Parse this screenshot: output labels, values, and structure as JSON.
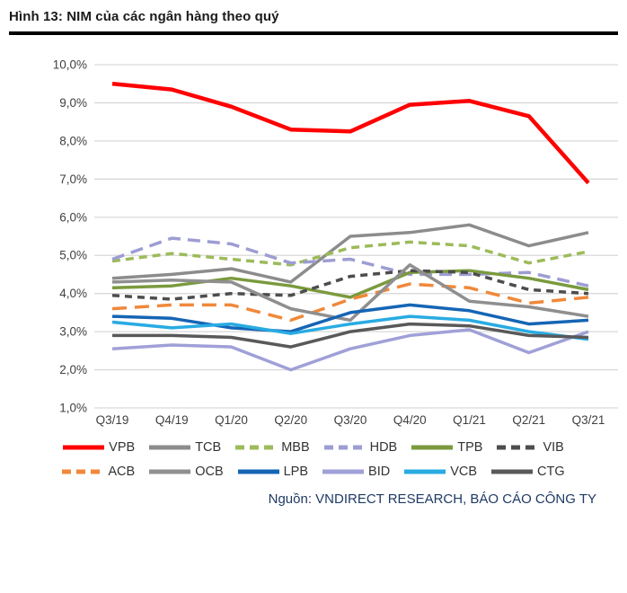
{
  "chart_data": {
    "type": "line",
    "title": "Hình 13: NIM của các ngân hàng theo quý",
    "source": "Nguồn: VNDIRECT RESEARCH, BÁO CÁO CÔNG TY",
    "x_categories": [
      "Q3/19",
      "Q4/19",
      "Q1/20",
      "Q2/20",
      "Q3/20",
      "Q4/20",
      "Q1/21",
      "Q2/21",
      "Q3/21"
    ],
    "y_ticks": [
      "10,0%",
      "9,0%",
      "8,0%",
      "7,0%",
      "6,0%",
      "5,0%",
      "4,0%",
      "3,0%",
      "2,0%",
      "1,0%"
    ],
    "y_min": 1,
    "y_max": 10,
    "grid": "horizontal-only",
    "gridline_color": "#d9d9d9",
    "axis_label_color": "#404040",
    "legend_position": "bottom",
    "legend_rows": [
      [
        "VPB",
        "TCB",
        "MBB",
        "HDB",
        "TPB",
        "VIB"
      ],
      [
        "ACB",
        "OCB",
        "LPB",
        "BID",
        "VCB",
        "CTG"
      ]
    ],
    "series": [
      {
        "name": "VPB",
        "color": "#fe0000",
        "dash": "",
        "width": 4.5,
        "values": [
          9.5,
          9.35,
          8.9,
          8.3,
          8.25,
          8.95,
          9.05,
          8.65,
          6.9
        ]
      },
      {
        "name": "TCB",
        "color": "#8c8c8c",
        "dash": "",
        "width": 3.5,
        "values": [
          4.4,
          4.5,
          4.65,
          4.3,
          5.5,
          5.6,
          5.8,
          5.25,
          5.6
        ]
      },
      {
        "name": "MBB",
        "color": "#9cbb5a",
        "dash": "9 6",
        "width": 3.5,
        "values": [
          4.85,
          5.05,
          4.9,
          4.75,
          5.2,
          5.35,
          5.25,
          4.8,
          5.1
        ]
      },
      {
        "name": "HDB",
        "color": "#9d9dd3",
        "dash": "14 8",
        "width": 3.5,
        "values": [
          4.9,
          5.45,
          5.3,
          4.8,
          4.9,
          4.5,
          4.5,
          4.55,
          4.2
        ]
      },
      {
        "name": "TPB",
        "color": "#7a9a3d",
        "dash": "",
        "width": 3.5,
        "values": [
          4.15,
          4.2,
          4.4,
          4.2,
          3.9,
          4.55,
          4.6,
          4.4,
          4.1
        ]
      },
      {
        "name": "VIB",
        "color": "#4d4d4d",
        "dash": "8 6",
        "width": 3.5,
        "values": [
          3.95,
          3.85,
          4.0,
          3.95,
          4.45,
          4.6,
          4.55,
          4.1,
          4.0
        ]
      },
      {
        "name": "ACB",
        "color": "#f0883a",
        "dash": "16 9",
        "width": 3.5,
        "values": [
          3.6,
          3.7,
          3.7,
          3.3,
          3.85,
          4.25,
          4.15,
          3.75,
          3.9
        ]
      },
      {
        "name": "OCB",
        "color": "#8f8f8f",
        "dash": "",
        "width": 3.5,
        "values": [
          4.3,
          4.35,
          4.3,
          3.6,
          3.3,
          4.75,
          3.8,
          3.65,
          3.4
        ]
      },
      {
        "name": "LPB",
        "color": "#1565b5",
        "dash": "",
        "width": 3.5,
        "values": [
          3.4,
          3.35,
          3.1,
          3.0,
          3.5,
          3.7,
          3.55,
          3.2,
          3.3
        ]
      },
      {
        "name": "BID",
        "color": "#a0a0d8",
        "dash": "",
        "width": 3.5,
        "values": [
          2.55,
          2.65,
          2.6,
          2.0,
          2.55,
          2.9,
          3.05,
          2.45,
          3.0
        ]
      },
      {
        "name": "VCB",
        "color": "#29abe2",
        "dash": "",
        "width": 3.5,
        "values": [
          3.25,
          3.1,
          3.2,
          2.95,
          3.2,
          3.4,
          3.3,
          3.0,
          2.8
        ]
      },
      {
        "name": "CTG",
        "color": "#595959",
        "dash": "",
        "width": 3.5,
        "values": [
          2.9,
          2.9,
          2.85,
          2.6,
          3.0,
          3.2,
          3.15,
          2.9,
          2.85
        ]
      }
    ]
  }
}
